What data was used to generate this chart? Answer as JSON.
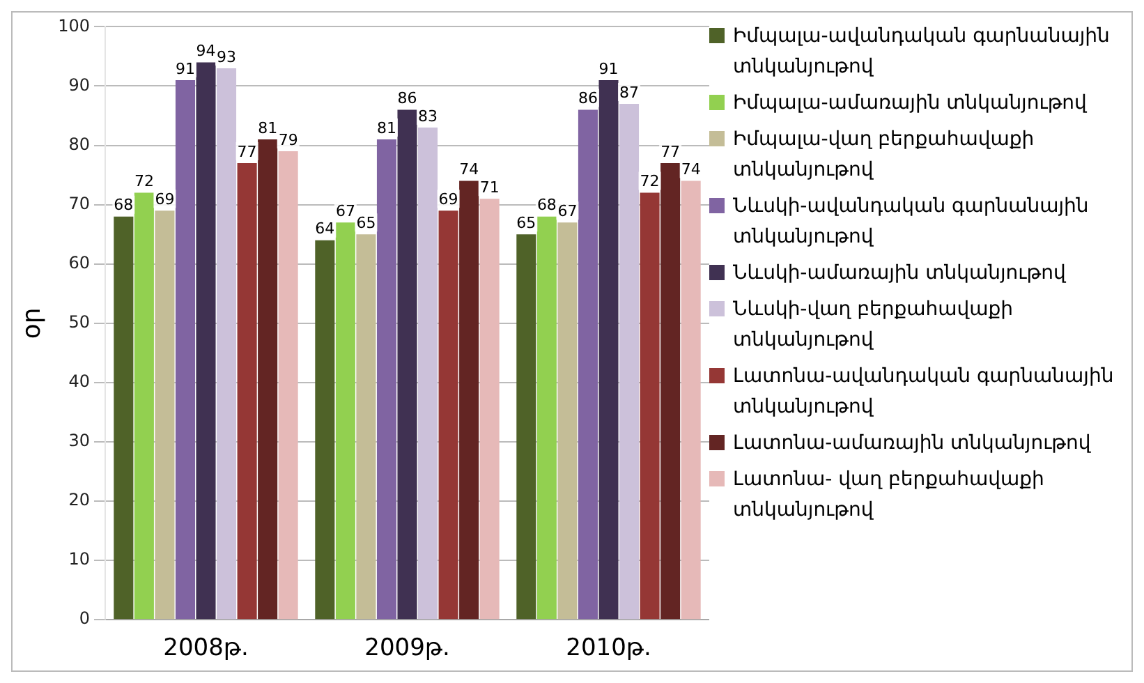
{
  "chart_data": {
    "type": "bar",
    "ylabel": "օր",
    "categories": [
      "2008թ.",
      "2009թ.",
      "2010թ."
    ],
    "series": [
      {
        "name": "Իմպալա-ավանդական գարնանային տնկանյութով",
        "color": "#4f6228",
        "values": [
          68,
          64,
          65
        ]
      },
      {
        "name": "Իմպալա-ամառային տնկանյութով",
        "color": "#92d050",
        "values": [
          72,
          67,
          68
        ]
      },
      {
        "name": "Իմպալա-վաղ բերքահավաքի տնկանյութով",
        "color": "#c4bd97",
        "values": [
          69,
          65,
          67
        ]
      },
      {
        "name": "Նևսկի-ավանդական գարնանային տնկանյութով",
        "color": "#8064a2",
        "values": [
          91,
          81,
          86
        ]
      },
      {
        "name": "Նևսկի-ամառային տնկանյութով",
        "color": "#403152",
        "values": [
          94,
          86,
          91
        ]
      },
      {
        "name": "Նևսկի-վաղ բերքահավաքի տնկանյութով",
        "color": "#ccc1da",
        "values": [
          93,
          83,
          87
        ]
      },
      {
        "name": "Լատոնա-ավանդական գարնանային տնկանյութով",
        "color": "#953735",
        "values": [
          77,
          69,
          72
        ]
      },
      {
        "name": "Լատոնա-ամառային տնկանյութով",
        "color": "#632523",
        "values": [
          81,
          74,
          77
        ]
      },
      {
        "name": "Լատոնա- վաղ բերքահավաքի տնկանյութով",
        "color": "#e6b9b8",
        "values": [
          79,
          71,
          74
        ]
      }
    ],
    "ylim": [
      0,
      100
    ],
    "yticks": [
      0,
      10,
      20,
      30,
      40,
      50,
      60,
      70,
      80,
      90,
      100
    ],
    "grid": "y",
    "legend": "right",
    "data_labels": true
  }
}
